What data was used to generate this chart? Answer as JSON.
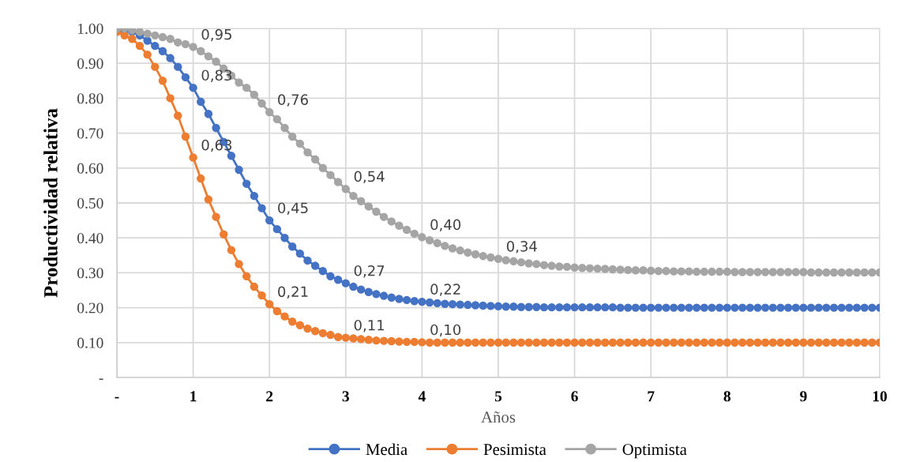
{
  "chart_data": {
    "type": "line",
    "xlabel": "Años",
    "ylabel": "Productividad relativa",
    "x": [
      0,
      0.1,
      0.2,
      0.3,
      0.4,
      0.5,
      0.6,
      0.7,
      0.8,
      0.9,
      1,
      1.1,
      1.2,
      1.3,
      1.4,
      1.5,
      1.6,
      1.7,
      1.8,
      1.9,
      2,
      2.1,
      2.2,
      2.3,
      2.4,
      2.5,
      2.6,
      2.7,
      2.8,
      2.9,
      3,
      3.1,
      3.2,
      3.3,
      3.4,
      3.5,
      3.6,
      3.7,
      3.8,
      3.9,
      4,
      4.1,
      4.2,
      4.3,
      4.4,
      4.5,
      4.6,
      4.7,
      4.8,
      4.9,
      5,
      5.1,
      5.2,
      5.3,
      5.4,
      5.5,
      5.6,
      5.7,
      5.8,
      5.9,
      6,
      6.1,
      6.2,
      6.3,
      6.4,
      6.5,
      6.6,
      6.7,
      6.8,
      6.9,
      7,
      7.1,
      7.2,
      7.3,
      7.4,
      7.5,
      7.6,
      7.7,
      7.8,
      7.9,
      8,
      8.1,
      8.2,
      8.3,
      8.4,
      8.5,
      8.6,
      8.7,
      8.8,
      8.9,
      9,
      9.1,
      9.2,
      9.3,
      9.4,
      9.5,
      9.6,
      9.7,
      9.8,
      9.9,
      10
    ],
    "series": [
      {
        "name": "Media",
        "color": "#4472c4",
        "values": [
          1.0,
          0.995,
          0.99,
          0.98,
          0.965,
          0.95,
          0.935,
          0.915,
          0.89,
          0.86,
          0.83,
          0.79,
          0.755,
          0.715,
          0.675,
          0.635,
          0.595,
          0.555,
          0.52,
          0.485,
          0.45,
          0.425,
          0.4,
          0.375,
          0.355,
          0.335,
          0.32,
          0.305,
          0.29,
          0.28,
          0.27,
          0.26,
          0.252,
          0.245,
          0.239,
          0.234,
          0.229,
          0.225,
          0.222,
          0.219,
          0.217,
          0.215,
          0.213,
          0.211,
          0.21,
          0.209,
          0.208,
          0.207,
          0.206,
          0.205,
          0.204,
          0.203,
          0.203,
          0.202,
          0.202,
          0.202,
          0.201,
          0.201,
          0.201,
          0.201,
          0.201,
          0.201,
          0.201,
          0.201,
          0.201,
          0.201,
          0.2,
          0.2,
          0.2,
          0.2,
          0.2,
          0.2,
          0.2,
          0.2,
          0.2,
          0.2,
          0.2,
          0.2,
          0.2,
          0.2,
          0.2,
          0.2,
          0.2,
          0.2,
          0.2,
          0.2,
          0.2,
          0.2,
          0.2,
          0.2,
          0.2,
          0.2,
          0.2,
          0.2,
          0.2,
          0.2,
          0.2,
          0.2,
          0.2,
          0.2,
          0.2
        ],
        "value_labels": [
          null,
          null,
          null,
          null,
          null,
          null,
          null,
          null,
          null,
          null,
          "0,83",
          null,
          null,
          null,
          null,
          null,
          null,
          null,
          null,
          null,
          "0,45",
          null,
          null,
          null,
          null,
          null,
          null,
          null,
          null,
          null,
          "0,27",
          null,
          null,
          null,
          null,
          null,
          null,
          null,
          null,
          null,
          "0,22",
          null,
          null,
          null,
          null,
          null,
          null,
          null,
          null,
          null,
          null,
          null,
          null,
          null,
          null,
          null,
          null,
          null,
          null,
          null,
          null,
          null,
          null,
          null,
          null,
          null,
          null,
          null,
          null,
          null,
          null,
          null,
          null,
          null,
          null,
          null,
          null,
          null,
          null,
          null,
          null,
          null,
          null,
          null,
          null,
          null,
          null,
          null,
          null,
          null,
          null,
          null,
          null,
          null,
          null,
          null,
          null,
          null,
          null,
          null,
          null
        ]
      },
      {
        "name": "Pesimista",
        "color": "#ed7d31",
        "values": [
          0.99,
          0.98,
          0.97,
          0.95,
          0.925,
          0.89,
          0.85,
          0.8,
          0.75,
          0.69,
          0.63,
          0.57,
          0.51,
          0.46,
          0.41,
          0.365,
          0.325,
          0.29,
          0.26,
          0.235,
          0.21,
          0.19,
          0.175,
          0.16,
          0.15,
          0.14,
          0.133,
          0.127,
          0.122,
          0.116,
          0.114,
          0.112,
          0.11,
          0.108,
          0.106,
          0.105,
          0.104,
          0.103,
          0.102,
          0.102,
          0.101,
          0.1,
          0.1,
          0.1,
          0.1,
          0.1,
          0.1,
          0.1,
          0.1,
          0.1,
          0.1,
          0.1,
          0.1,
          0.1,
          0.1,
          0.1,
          0.1,
          0.1,
          0.1,
          0.1,
          0.1,
          0.1,
          0.1,
          0.1,
          0.1,
          0.1,
          0.1,
          0.1,
          0.1,
          0.1,
          0.1,
          0.1,
          0.1,
          0.1,
          0.1,
          0.1,
          0.1,
          0.1,
          0.1,
          0.1,
          0.1,
          0.1,
          0.1,
          0.1,
          0.1,
          0.1,
          0.1,
          0.1,
          0.1,
          0.1,
          0.1,
          0.1,
          0.1,
          0.1,
          0.1,
          0.1,
          0.1,
          0.1,
          0.1,
          0.1,
          0.1
        ],
        "value_labels": [
          null,
          null,
          null,
          null,
          null,
          null,
          null,
          null,
          null,
          null,
          "0,63",
          null,
          null,
          null,
          null,
          null,
          null,
          null,
          null,
          null,
          "0,21",
          null,
          null,
          null,
          null,
          null,
          null,
          null,
          null,
          null,
          "0,11",
          null,
          null,
          null,
          null,
          null,
          null,
          null,
          null,
          null,
          "0,10",
          null,
          null,
          null,
          null,
          null,
          null,
          null,
          null,
          null,
          null,
          null,
          null,
          null,
          null,
          null,
          null,
          null,
          null,
          null,
          null,
          null,
          null,
          null,
          null,
          null,
          null,
          null,
          null,
          null,
          null,
          null,
          null,
          null,
          null,
          null,
          null,
          null,
          null,
          null,
          null,
          null,
          null,
          null,
          null,
          null,
          null,
          null,
          null,
          null,
          null,
          null,
          null,
          null,
          null,
          null,
          null,
          null,
          null,
          null,
          null
        ]
      },
      {
        "name": "Optimista",
        "color": "#a5a5a5",
        "values": [
          1.0,
          1.0,
          0.995,
          0.99,
          0.985,
          0.98,
          0.975,
          0.97,
          0.96,
          0.955,
          0.947,
          0.935,
          0.92,
          0.905,
          0.885,
          0.865,
          0.845,
          0.83,
          0.81,
          0.785,
          0.76,
          0.74,
          0.715,
          0.69,
          0.67,
          0.645,
          0.625,
          0.6,
          0.58,
          0.56,
          0.54,
          0.52,
          0.505,
          0.49,
          0.475,
          0.46,
          0.447,
          0.435,
          0.423,
          0.412,
          0.402,
          0.393,
          0.385,
          0.377,
          0.37,
          0.364,
          0.358,
          0.353,
          0.348,
          0.344,
          0.34,
          0.336,
          0.333,
          0.33,
          0.327,
          0.325,
          0.322,
          0.32,
          0.318,
          0.317,
          0.315,
          0.314,
          0.313,
          0.312,
          0.311,
          0.31,
          0.309,
          0.308,
          0.307,
          0.307,
          0.306,
          0.305,
          0.305,
          0.304,
          0.304,
          0.304,
          0.303,
          0.303,
          0.303,
          0.303,
          0.303,
          0.302,
          0.302,
          0.302,
          0.302,
          0.302,
          0.302,
          0.302,
          0.302,
          0.302,
          0.302,
          0.301,
          0.301,
          0.301,
          0.301,
          0.301,
          0.301,
          0.301,
          0.301,
          0.301,
          0.301
        ],
        "value_labels": [
          null,
          null,
          null,
          null,
          null,
          null,
          null,
          null,
          null,
          null,
          "0,95",
          null,
          null,
          null,
          null,
          null,
          null,
          null,
          null,
          null,
          "0,76",
          null,
          null,
          null,
          null,
          null,
          null,
          null,
          null,
          null,
          "0,54",
          null,
          null,
          null,
          null,
          null,
          null,
          null,
          null,
          null,
          "0,40",
          null,
          null,
          null,
          null,
          null,
          null,
          null,
          null,
          null,
          "0,34",
          null,
          null,
          null,
          null,
          null,
          null,
          null,
          null,
          null,
          null,
          null,
          null,
          null,
          null,
          null,
          null,
          null,
          null,
          null,
          null,
          null,
          null,
          null,
          null,
          null,
          null,
          null,
          null,
          null,
          null,
          null,
          null,
          null,
          null,
          null,
          null,
          null,
          null,
          null,
          null,
          null,
          null,
          null,
          null,
          null,
          null,
          null,
          null,
          null,
          null
        ]
      }
    ],
    "xlim": [
      0,
      10
    ],
    "xticks": [
      {
        "value": 0,
        "label": "-"
      },
      1,
      2,
      3,
      4,
      5,
      6,
      7,
      8,
      9,
      10
    ],
    "ylim": [
      0,
      1
    ],
    "yticks": [
      {
        "value": 0,
        "label": "-"
      },
      {
        "value": 0.1,
        "label": "0.10"
      },
      {
        "value": 0.2,
        "label": "0.20"
      },
      {
        "value": 0.3,
        "label": "0.30"
      },
      {
        "value": 0.4,
        "label": "0.40"
      },
      {
        "value": 0.5,
        "label": "0.50"
      },
      {
        "value": 0.6,
        "label": "0.60"
      },
      {
        "value": 0.7,
        "label": "0.70"
      },
      {
        "value": 0.8,
        "label": "0.80"
      },
      {
        "value": 0.9,
        "label": "0.90"
      },
      {
        "value": 1,
        "label": "1.00"
      }
    ],
    "grid": true,
    "legend": "bottom",
    "marker": "circle",
    "line_style": "solid"
  }
}
